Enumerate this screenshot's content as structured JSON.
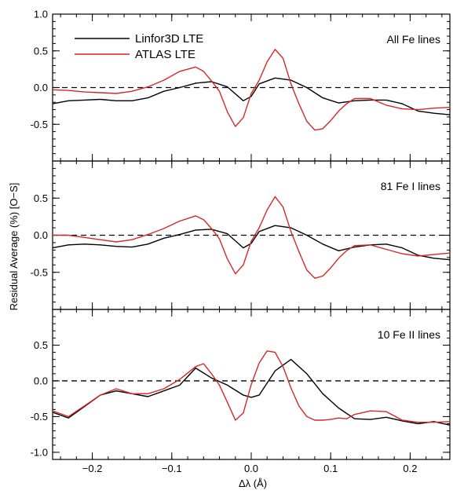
{
  "figure": {
    "ylabel": "Residual Average (%) [O−S]",
    "xlabel": "Δλ (Å)"
  },
  "legend": [
    {
      "name": "Linfor3D LTE",
      "color": "#000000"
    },
    {
      "name": "ATLAS LTE",
      "color": "#d62728"
    }
  ],
  "chart_data": [
    {
      "type": "line",
      "panel_label": "All Fe lines",
      "xlim": [
        -0.25,
        0.25
      ],
      "ylim": [
        -1.0,
        1.0
      ],
      "yticks": [
        -0.5,
        0.0,
        0.5
      ],
      "reference_line": 0.0,
      "series": [
        {
          "name": "Linfor3D LTE",
          "color": "#000000",
          "x": [
            -0.25,
            -0.23,
            -0.21,
            -0.19,
            -0.17,
            -0.15,
            -0.13,
            -0.11,
            -0.09,
            -0.07,
            -0.05,
            -0.03,
            -0.01,
            0.0,
            0.01,
            0.03,
            0.05,
            0.07,
            0.09,
            0.11,
            0.13,
            0.15,
            0.17,
            0.19,
            0.21,
            0.23,
            0.25
          ],
          "y": [
            -0.22,
            -0.18,
            -0.17,
            -0.16,
            -0.18,
            -0.18,
            -0.14,
            -0.05,
            0.0,
            0.06,
            0.08,
            0.01,
            -0.18,
            -0.12,
            0.05,
            0.13,
            0.1,
            0.0,
            -0.14,
            -0.21,
            -0.18,
            -0.17,
            -0.17,
            -0.22,
            -0.32,
            -0.35,
            -0.37
          ]
        },
        {
          "name": "ATLAS LTE",
          "color": "#d62728",
          "x": [
            -0.25,
            -0.23,
            -0.21,
            -0.19,
            -0.17,
            -0.15,
            -0.13,
            -0.11,
            -0.09,
            -0.07,
            -0.06,
            -0.05,
            -0.04,
            -0.03,
            -0.02,
            -0.01,
            0.0,
            0.01,
            0.02,
            0.03,
            0.04,
            0.05,
            0.06,
            0.07,
            0.08,
            0.09,
            0.1,
            0.11,
            0.12,
            0.13,
            0.15,
            0.17,
            0.19,
            0.21,
            0.23,
            0.25
          ],
          "y": [
            -0.03,
            -0.04,
            -0.06,
            -0.07,
            -0.08,
            -0.05,
            0.01,
            0.1,
            0.22,
            0.28,
            0.22,
            0.09,
            -0.05,
            -0.33,
            -0.53,
            -0.41,
            -0.08,
            0.1,
            0.35,
            0.52,
            0.4,
            0.05,
            -0.22,
            -0.46,
            -0.58,
            -0.56,
            -0.45,
            -0.32,
            -0.22,
            -0.15,
            -0.15,
            -0.24,
            -0.29,
            -0.3,
            -0.28,
            -0.27
          ]
        }
      ]
    },
    {
      "type": "line",
      "panel_label": "81 Fe I lines",
      "xlim": [
        -0.25,
        0.25
      ],
      "ylim": [
        -1.0,
        1.0
      ],
      "yticks": [
        -0.5,
        0.0,
        0.5
      ],
      "reference_line": 0.0,
      "series": [
        {
          "name": "Linfor3D LTE",
          "color": "#000000",
          "x": [
            -0.25,
            -0.23,
            -0.21,
            -0.19,
            -0.17,
            -0.15,
            -0.13,
            -0.11,
            -0.09,
            -0.07,
            -0.05,
            -0.03,
            -0.01,
            0.0,
            0.01,
            0.03,
            0.05,
            0.07,
            0.09,
            0.11,
            0.13,
            0.15,
            0.17,
            0.19,
            0.21,
            0.23,
            0.25
          ],
          "y": [
            -0.17,
            -0.13,
            -0.12,
            -0.13,
            -0.15,
            -0.16,
            -0.12,
            -0.04,
            0.01,
            0.07,
            0.08,
            0.02,
            -0.17,
            -0.11,
            0.05,
            0.13,
            0.1,
            0.0,
            -0.12,
            -0.21,
            -0.16,
            -0.13,
            -0.12,
            -0.17,
            -0.27,
            -0.31,
            -0.33
          ]
        },
        {
          "name": "ATLAS LTE",
          "color": "#d62728",
          "x": [
            -0.25,
            -0.23,
            -0.21,
            -0.19,
            -0.17,
            -0.15,
            -0.13,
            -0.11,
            -0.09,
            -0.07,
            -0.06,
            -0.05,
            -0.04,
            -0.03,
            -0.02,
            -0.01,
            0.0,
            0.01,
            0.02,
            0.03,
            0.04,
            0.05,
            0.06,
            0.07,
            0.08,
            0.09,
            0.1,
            0.11,
            0.12,
            0.13,
            0.15,
            0.17,
            0.19,
            0.21,
            0.23,
            0.25
          ],
          "y": [
            0.0,
            0.0,
            -0.03,
            -0.06,
            -0.09,
            -0.06,
            0.01,
            0.09,
            0.19,
            0.26,
            0.21,
            0.09,
            -0.05,
            -0.32,
            -0.52,
            -0.4,
            -0.08,
            0.1,
            0.34,
            0.52,
            0.38,
            0.05,
            -0.22,
            -0.47,
            -0.58,
            -0.55,
            -0.44,
            -0.31,
            -0.21,
            -0.14,
            -0.13,
            -0.19,
            -0.25,
            -0.28,
            -0.26,
            -0.24
          ]
        }
      ]
    },
    {
      "type": "line",
      "panel_label": "10 Fe II lines",
      "xlim": [
        -0.25,
        0.25
      ],
      "ylim": [
        -1.1,
        1.0
      ],
      "yticks": [
        -1.0,
        -0.5,
        0.0,
        0.5
      ],
      "xticks": [
        -0.2,
        -0.1,
        0.0,
        0.1,
        0.2
      ],
      "reference_line": 0.0,
      "series": [
        {
          "name": "Linfor3D LTE",
          "color": "#000000",
          "x": [
            -0.25,
            -0.23,
            -0.21,
            -0.19,
            -0.17,
            -0.15,
            -0.13,
            -0.11,
            -0.09,
            -0.07,
            -0.05,
            -0.03,
            -0.01,
            0.0,
            0.01,
            0.03,
            0.05,
            0.07,
            0.09,
            0.11,
            0.13,
            0.15,
            0.17,
            0.19,
            0.21,
            0.23,
            0.25
          ],
          "y": [
            -0.44,
            -0.52,
            -0.36,
            -0.2,
            -0.14,
            -0.18,
            -0.22,
            -0.14,
            -0.06,
            0.18,
            0.04,
            -0.06,
            -0.2,
            -0.23,
            -0.2,
            0.14,
            0.3,
            0.1,
            -0.18,
            -0.38,
            -0.53,
            -0.54,
            -0.51,
            -0.56,
            -0.6,
            -0.57,
            -0.62
          ]
        },
        {
          "name": "ATLAS LTE",
          "color": "#d62728",
          "x": [
            -0.25,
            -0.23,
            -0.21,
            -0.19,
            -0.17,
            -0.15,
            -0.13,
            -0.11,
            -0.09,
            -0.07,
            -0.06,
            -0.05,
            -0.04,
            -0.03,
            -0.02,
            -0.01,
            0.0,
            0.01,
            0.02,
            0.03,
            0.04,
            0.05,
            0.06,
            0.07,
            0.08,
            0.09,
            0.1,
            0.11,
            0.12,
            0.13,
            0.15,
            0.17,
            0.19,
            0.21,
            0.23,
            0.25
          ],
          "y": [
            -0.42,
            -0.5,
            -0.35,
            -0.2,
            -0.11,
            -0.18,
            -0.18,
            -0.11,
            0.02,
            0.2,
            0.24,
            0.1,
            -0.06,
            -0.3,
            -0.55,
            -0.45,
            -0.05,
            0.25,
            0.42,
            0.4,
            0.2,
            -0.1,
            -0.35,
            -0.5,
            -0.55,
            -0.55,
            -0.54,
            -0.52,
            -0.53,
            -0.47,
            -0.42,
            -0.43,
            -0.55,
            -0.58,
            -0.58,
            -0.57
          ]
        }
      ]
    }
  ]
}
